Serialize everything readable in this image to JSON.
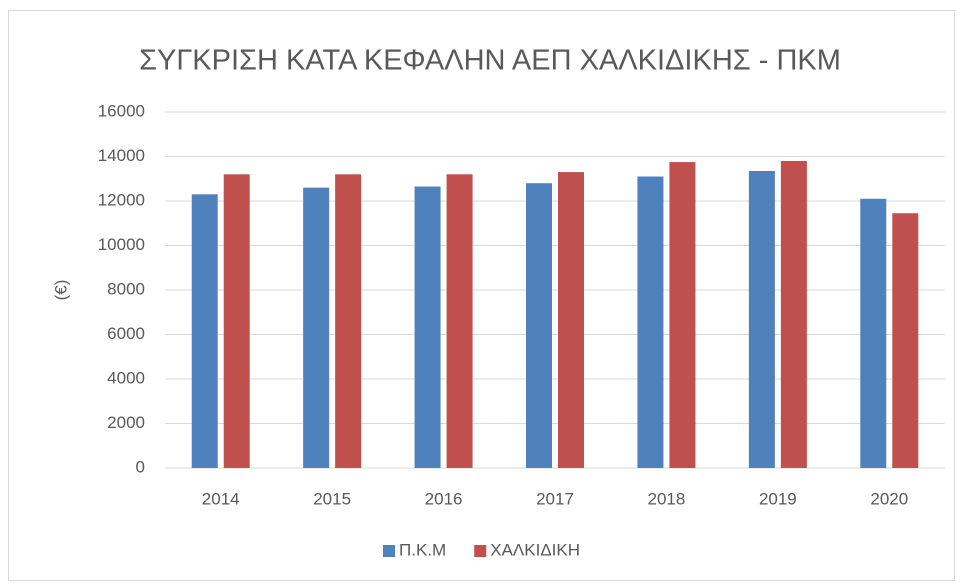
{
  "chart_data": {
    "type": "bar",
    "title": "ΣΥΓΚΡΙΣΗ ΚΑΤΑ ΚΕΦΑΛΗΝ ΑΕΠ ΧΑΛΚΙΔΙΚΗΣ - ΠΚΜ",
    "y_label": "(€)",
    "categories": [
      "2014",
      "2015",
      "2016",
      "2017",
      "2018",
      "2019",
      "2020"
    ],
    "series": [
      {
        "name": "Π.Κ.Μ",
        "color": "#4f81bd",
        "values": [
          12300,
          12600,
          12650,
          12800,
          13100,
          13350,
          12100
        ]
      },
      {
        "name": "ΧΑΛΚΙΔΙΚΗ",
        "color": "#c0504d",
        "values": [
          13200,
          13200,
          13200,
          13300,
          13750,
          13800,
          11450
        ]
      }
    ],
    "ylim": [
      0,
      16000
    ],
    "yticks": [
      0,
      2000,
      4000,
      6000,
      8000,
      10000,
      12000,
      14000,
      16000
    ],
    "grid": true,
    "legend": "bottom"
  }
}
